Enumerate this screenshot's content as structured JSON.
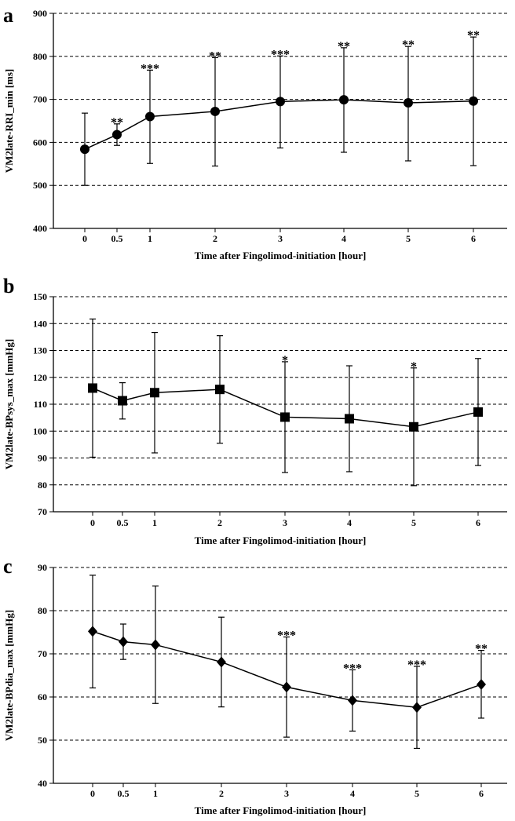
{
  "chart_data": [
    {
      "type": "line",
      "panel_label": "a",
      "title": "",
      "xlabel": "Time after Fingolimod-initiation  [hour]",
      "ylabel": "VM2late-RRI_min [ms]",
      "marker": "circle",
      "x": [
        0,
        0.5,
        1,
        2,
        3,
        4,
        5,
        6
      ],
      "x_tick_labels": [
        "0",
        "0.5",
        "1",
        "2",
        "3",
        "4",
        "5",
        "6"
      ],
      "y": [
        584,
        618,
        660,
        672,
        695,
        699,
        692,
        696
      ],
      "error_upper": [
        668,
        643,
        768,
        797,
        801,
        820,
        823,
        845
      ],
      "error_lower": [
        500,
        593,
        551,
        545,
        587,
        577,
        557,
        546
      ],
      "significance": [
        "",
        "**",
        "***",
        "**",
        "***",
        "**",
        "**",
        "**"
      ],
      "ylim": [
        400,
        900
      ],
      "y_ticks": [
        400,
        500,
        600,
        700,
        800,
        900
      ],
      "grid": true
    },
    {
      "type": "line",
      "panel_label": "b",
      "title": "",
      "xlabel": "Time after Fingolimod-initiation  [hour]",
      "ylabel": "VM2late-BPsys_max [mmHg]",
      "marker": "square",
      "x": [
        0,
        0.5,
        1,
        2,
        3,
        4,
        5,
        6
      ],
      "x_tick_labels": [
        "0",
        "0.5",
        "1",
        "2",
        "3",
        "4",
        "5",
        "6"
      ],
      "y": [
        116,
        111.3,
        114.3,
        115.5,
        105.2,
        104.6,
        101.6,
        107.1
      ],
      "error_upper": [
        141.7,
        118,
        136.7,
        135.5,
        125.8,
        124.3,
        123.5,
        127
      ],
      "error_lower": [
        90.3,
        104.5,
        91.9,
        95.5,
        84.6,
        84.9,
        79.7,
        87.2
      ],
      "significance": [
        "",
        "",
        "",
        "",
        "*",
        "",
        "*",
        ""
      ],
      "ylim": [
        70,
        150
      ],
      "y_ticks": [
        70,
        80,
        90,
        100,
        110,
        120,
        130,
        140,
        150
      ],
      "grid": true
    },
    {
      "type": "line",
      "panel_label": "c",
      "title": "",
      "xlabel": "Time after Fingolimod-initiation  [hour]",
      "ylabel": "VM2late-BPdia_max [mmHg]",
      "marker": "diamond",
      "x": [
        0,
        0.5,
        1,
        2,
        3,
        4,
        5,
        6
      ],
      "x_tick_labels": [
        "0",
        "0.5",
        "1",
        "2",
        "3",
        "4",
        "5",
        "6"
      ],
      "y": [
        75.2,
        72.8,
        72.1,
        68.1,
        62.3,
        59.2,
        57.6,
        62.9
      ],
      "error_upper": [
        88.2,
        76.9,
        85.7,
        78.5,
        73.9,
        66.3,
        67.1,
        70.8
      ],
      "error_lower": [
        62.1,
        68.7,
        58.5,
        57.7,
        50.7,
        52.1,
        48.1,
        55.1
      ],
      "significance": [
        "",
        "",
        "",
        "",
        "***",
        "***",
        "***",
        "**"
      ],
      "ylim": [
        40,
        90
      ],
      "y_ticks": [
        40,
        50,
        60,
        70,
        80,
        90
      ],
      "grid": true
    }
  ]
}
